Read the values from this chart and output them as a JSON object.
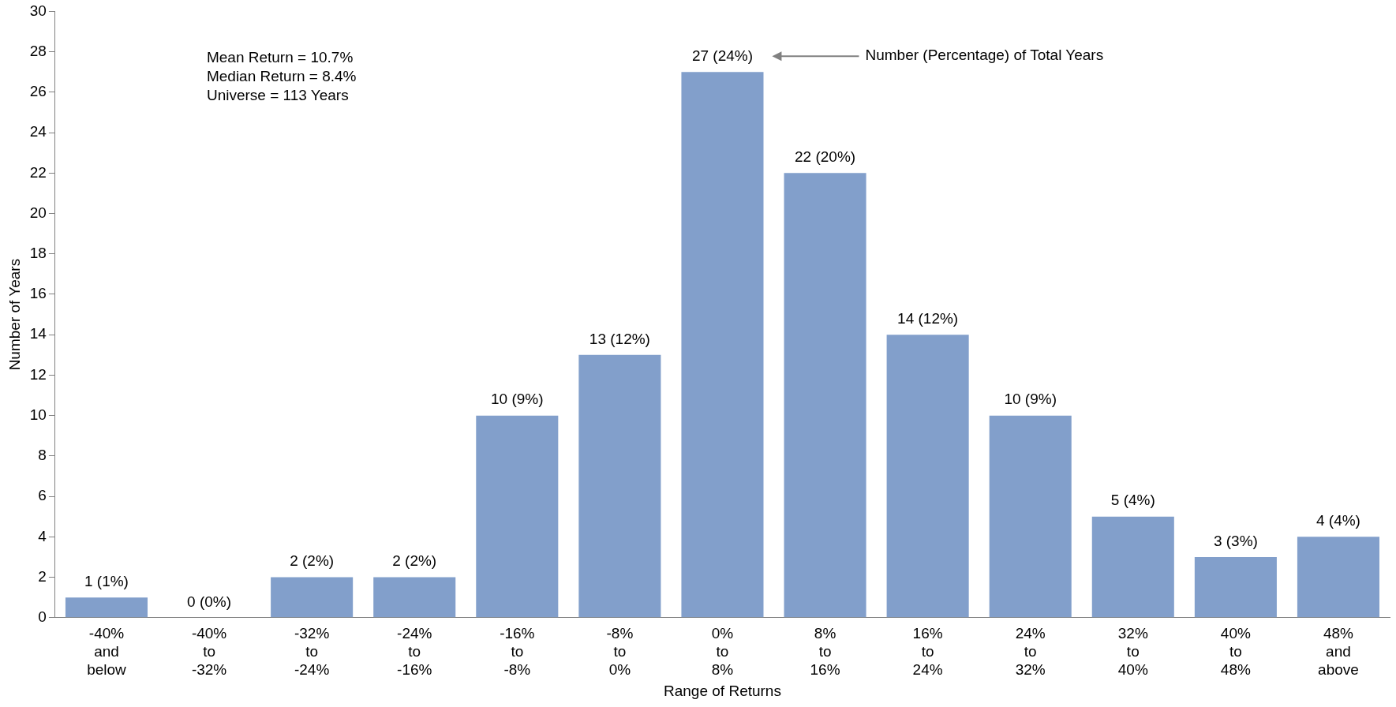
{
  "chart_data": {
    "type": "bar",
    "xlabel": "Range of Returns",
    "ylabel": "Number of Years",
    "categories": [
      "-40%\nand\nbelow",
      "-40%\nto\n-32%",
      "-32%\nto\n-24%",
      "-24%\nto\n-16%",
      "-16%\nto\n-8%",
      "-8%\nto\n0%",
      "0%\nto\n8%",
      "8%\nto\n16%",
      "16%\nto\n24%",
      "24%\nto\n32%",
      "32%\nto\n40%",
      "40%\nto\n48%",
      "48%\nand\nabove"
    ],
    "values": [
      1,
      0,
      2,
      2,
      10,
      13,
      27,
      22,
      14,
      10,
      5,
      3,
      4
    ],
    "value_labels": [
      "1 (1%)",
      "0 (0%)",
      "2 (2%)",
      "2 (2%)",
      "10 (9%)",
      "13 (12%)",
      "27 (24%)",
      "22 (20%)",
      "14 (12%)",
      "10 (9%)",
      "5 (4%)",
      "3 (3%)",
      "4 (4%)"
    ],
    "color": "#829fcb",
    "ylim": [
      0,
      30
    ],
    "yticks": [
      0,
      2,
      4,
      6,
      8,
      10,
      12,
      14,
      16,
      18,
      20,
      22,
      24,
      26,
      28,
      30
    ],
    "grid": false,
    "legend": false,
    "annotations": [
      "Mean Return = 10.7%",
      "Median Return = 8.4%",
      "Universe = 113 Years",
      "Number (Percentage) of Total Years"
    ]
  }
}
